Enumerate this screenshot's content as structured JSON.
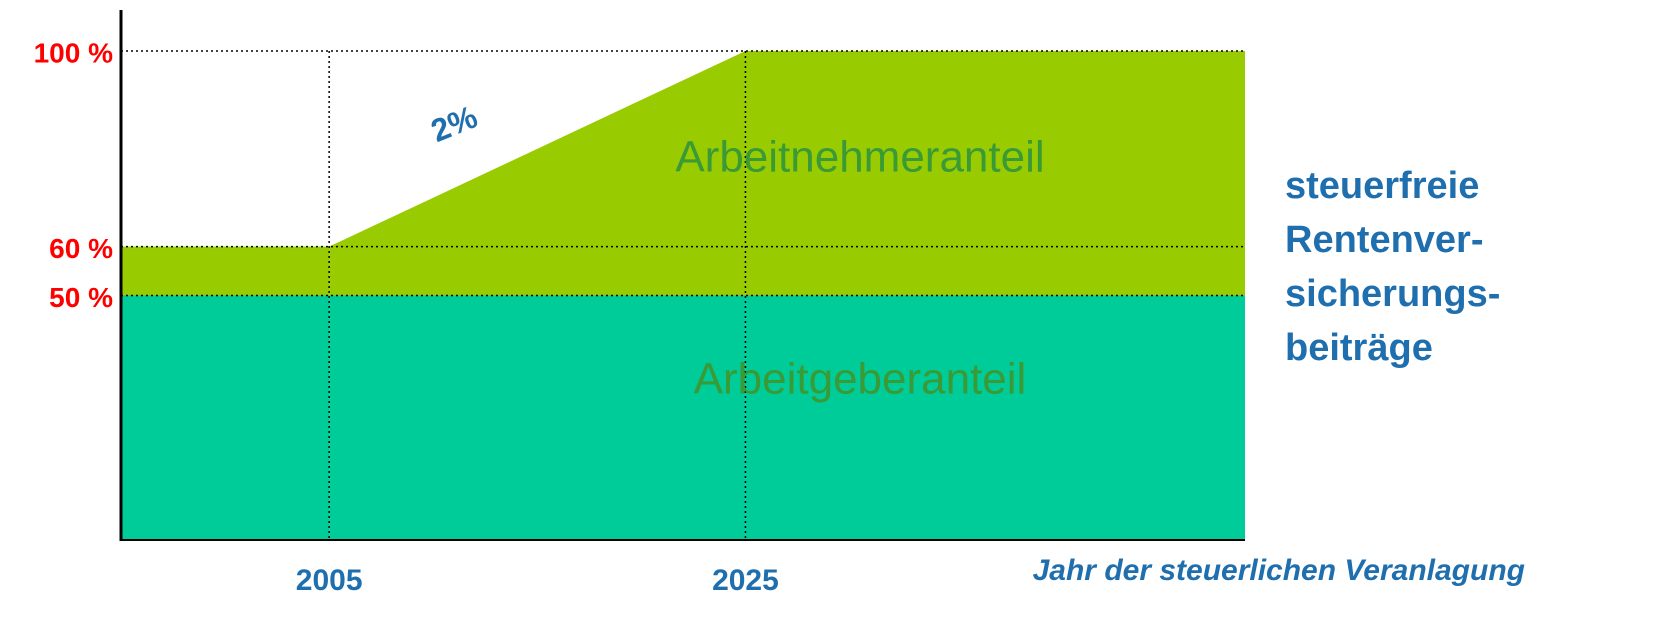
{
  "chart_data": {
    "type": "stacked-area",
    "x": [
      2005,
      2025
    ],
    "xlim": [
      1995,
      2049
    ],
    "xticks": [
      2005,
      2025
    ],
    "ylim": [
      0,
      100
    ],
    "yticks": [
      {
        "value": 50,
        "label": "50 %"
      },
      {
        "value": 60,
        "label": "60 %"
      },
      {
        "value": 100,
        "label": "100 %"
      }
    ],
    "grid": true,
    "x_label": "Jahr der steuerlichen Veranlagung",
    "series": [
      {
        "name": "Arbeitgeberanteil",
        "color": "#00cc99",
        "values": [
          50,
          50
        ]
      },
      {
        "name": "Arbeitnehmeranteil",
        "color": "#99cc00",
        "values": [
          10,
          50
        ]
      }
    ],
    "annotations": [
      {
        "text": "2%"
      }
    ],
    "side_text": [
      "steuerfreie",
      "Rentenver-",
      "sicherungs-",
      "beiträge"
    ]
  }
}
